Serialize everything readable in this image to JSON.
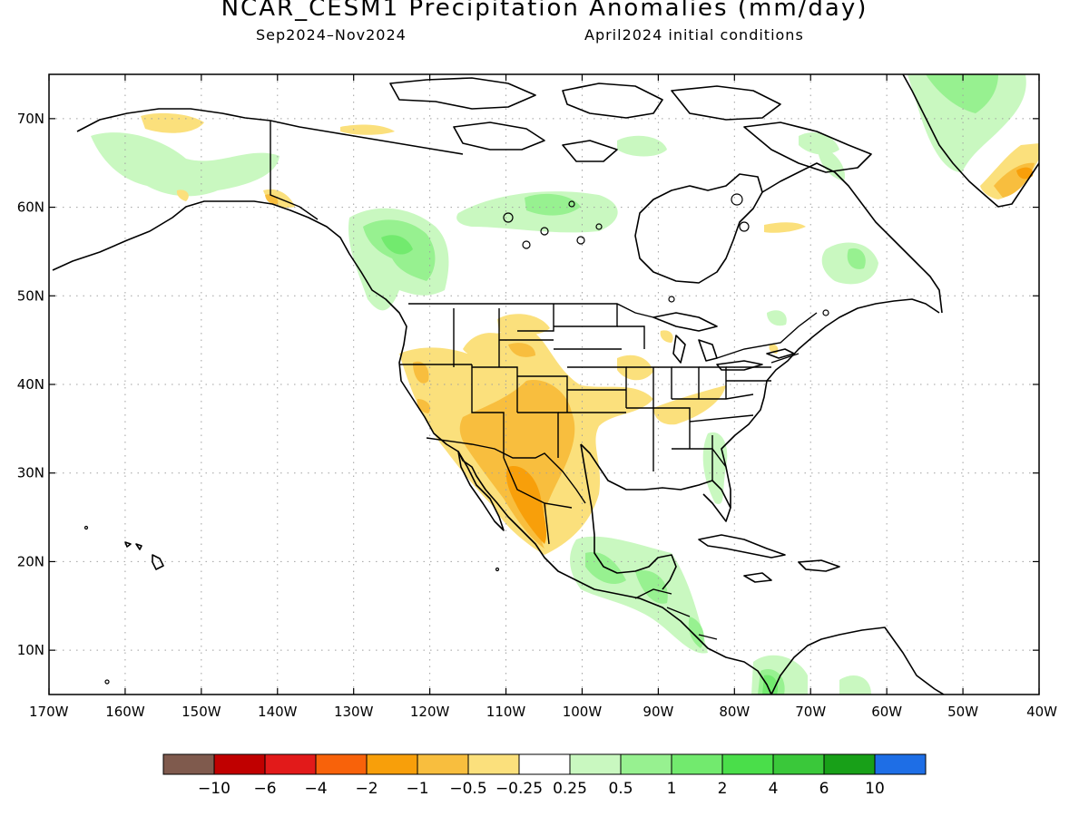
{
  "title": "NCAR_CESM1 Precipitation Anomalies (mm/day)",
  "subtitle_left": "Sep2024–Nov2024",
  "subtitle_right": "April2024 initial conditions",
  "map": {
    "lon_range": [
      -170,
      -40
    ],
    "lat_range": [
      5,
      75
    ],
    "lat_ticks": [
      {
        "value": 70,
        "label": "70N"
      },
      {
        "value": 60,
        "label": "60N"
      },
      {
        "value": 50,
        "label": "50N"
      },
      {
        "value": 40,
        "label": "40N"
      },
      {
        "value": 30,
        "label": "30N"
      },
      {
        "value": 20,
        "label": "20N"
      },
      {
        "value": 10,
        "label": "10N"
      }
    ],
    "lon_ticks": [
      {
        "value": -170,
        "label": "170W"
      },
      {
        "value": -160,
        "label": "160W"
      },
      {
        "value": -150,
        "label": "150W"
      },
      {
        "value": -140,
        "label": "140W"
      },
      {
        "value": -130,
        "label": "130W"
      },
      {
        "value": -120,
        "label": "120W"
      },
      {
        "value": -110,
        "label": "110W"
      },
      {
        "value": -100,
        "label": "100W"
      },
      {
        "value": -90,
        "label": "90W"
      },
      {
        "value": -80,
        "label": "80W"
      },
      {
        "value": -70,
        "label": "70W"
      },
      {
        "value": -60,
        "label": "60W"
      },
      {
        "value": -50,
        "label": "50W"
      },
      {
        "value": -40,
        "label": "40W"
      }
    ]
  },
  "colorbar": {
    "colors": [
      "#7f5a4d",
      "#c00000",
      "#e21a1a",
      "#f8620a",
      "#f89f0a",
      "#f8be3e",
      "#fbe07c",
      "#ffffff",
      "#c9f8c0",
      "#97f190",
      "#72ea6e",
      "#4ade4a",
      "#3ac83a",
      "#18a018",
      "#1e6ee6"
    ],
    "labels": [
      "−10",
      "−6",
      "−4",
      "−2",
      "−1",
      "−0.5",
      "−0.25",
      "0.25",
      "0.5",
      "1",
      "2",
      "4",
      "6",
      "10"
    ]
  }
}
